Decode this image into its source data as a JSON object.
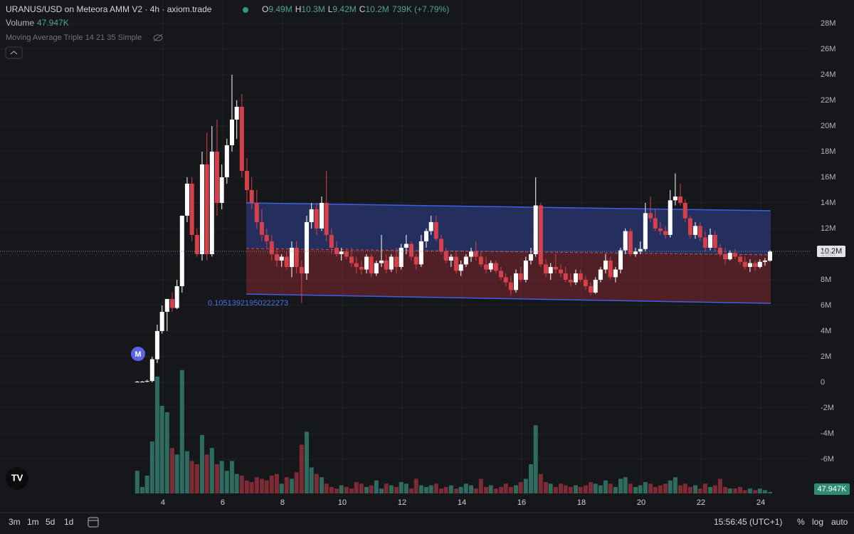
{
  "chart_data": {
    "type": "candlestick",
    "title": "URANUS/USD on Meteora AMM V2 · 4h · axiom.trade",
    "ohlc_legend": [
      {
        "label": "O",
        "value": "9.49M"
      },
      {
        "label": "H",
        "value": "10.3M"
      },
      {
        "label": "L",
        "value": "9.42M"
      },
      {
        "label": "C",
        "value": "10.2M"
      }
    ],
    "change": "739K (+7.79%)",
    "volume_label": "Volume",
    "volume_value": "47.947K",
    "indicator": "Moving Average Triple 14 21 35 Simple",
    "annotation": "0.10513921950222273",
    "badge": "M",
    "last_price_label": "10.2M",
    "last_volume_label": "47.947K",
    "timeframes": [
      "3m",
      "1m",
      "5d",
      "1d"
    ],
    "clock": "15:56:45 (UTC+1)",
    "buttons": [
      "%",
      "log",
      "auto"
    ],
    "log_scale": false,
    "up_color": "#ffffff",
    "down_color": "#d6404b",
    "volume_up_color": "#2f6b5f",
    "volume_down_color": "#7d2c35",
    "xlim": [
      -1.45,
      25.69
    ],
    "xticks": [
      4,
      6,
      8,
      10,
      12,
      14,
      16,
      18,
      20,
      22,
      24
    ],
    "ylim": [
      -8.67,
      29.83
    ],
    "yticks": [
      {
        "value": -6,
        "label": "-6M"
      },
      {
        "value": -4,
        "label": "-4M"
      },
      {
        "value": -2,
        "label": "-2M"
      },
      0,
      {
        "value": 2,
        "label": "2M"
      },
      {
        "value": 4,
        "label": "4M"
      },
      {
        "value": 6,
        "label": "6M"
      },
      {
        "value": 8,
        "label": "8M"
      },
      {
        "value": 10,
        "label": "10M"
      },
      {
        "value": 12,
        "label": "12M"
      },
      {
        "value": 14,
        "label": "14M"
      },
      {
        "value": 16,
        "label": "16M"
      },
      {
        "value": 18,
        "label": "18M"
      },
      {
        "value": 20,
        "label": "20M"
      },
      {
        "value": 22,
        "label": "22M"
      },
      {
        "value": 24,
        "label": "24M"
      },
      {
        "value": 26,
        "label": "26M"
      },
      {
        "value": 28,
        "label": "28M"
      }
    ],
    "volume_ylim": [
      0,
      15200
    ],
    "x": [
      3.14,
      3.31,
      3.47,
      3.64,
      3.81,
      3.97,
      4.14,
      4.31,
      4.47,
      4.64,
      4.81,
      4.97,
      5.14,
      5.31,
      5.47,
      5.64,
      5.81,
      5.97,
      6.14,
      6.31,
      6.47,
      6.64,
      6.81,
      6.97,
      7.14,
      7.31,
      7.47,
      7.64,
      7.81,
      7.97,
      8.14,
      8.31,
      8.47,
      8.64,
      8.81,
      8.97,
      9.14,
      9.31,
      9.47,
      9.64,
      9.81,
      9.97,
      10.14,
      10.31,
      10.47,
      10.64,
      10.81,
      10.97,
      11.14,
      11.31,
      11.47,
      11.64,
      11.81,
      11.97,
      12.14,
      12.31,
      12.47,
      12.64,
      12.81,
      12.97,
      13.14,
      13.31,
      13.47,
      13.64,
      13.81,
      13.97,
      14.14,
      14.31,
      14.47,
      14.64,
      14.81,
      14.97,
      15.14,
      15.31,
      15.47,
      15.64,
      15.81,
      15.97,
      16.14,
      16.31,
      16.47,
      16.64,
      16.81,
      16.97,
      17.14,
      17.31,
      17.47,
      17.64,
      17.81,
      17.97,
      18.14,
      18.31,
      18.47,
      18.64,
      18.81,
      18.97,
      19.14,
      19.31,
      19.47,
      19.64,
      19.81,
      19.97,
      20.14,
      20.31,
      20.47,
      20.64,
      20.81,
      20.97,
      21.14,
      21.31,
      21.47,
      21.64,
      21.81,
      21.97,
      22.14,
      22.31,
      22.47,
      22.64,
      22.81,
      22.97,
      23.14,
      23.31,
      23.47,
      23.64,
      23.81,
      23.97,
      24.14,
      24.31
    ],
    "candles": [
      [
        0,
        0.1,
        0,
        0.05
      ],
      [
        0.05,
        0.1,
        0,
        0.05
      ],
      [
        0.05,
        0.2,
        0,
        0.1
      ],
      [
        0.1,
        2,
        0,
        1.8
      ],
      [
        1.8,
        4.5,
        1.5,
        4
      ],
      [
        4,
        6,
        3.8,
        5.5
      ],
      [
        5.5,
        6.5,
        4,
        6.5
      ],
      [
        6.5,
        7,
        5.5,
        5.8
      ],
      [
        5.8,
        8,
        5.7,
        7.5
      ],
      [
        7.5,
        13,
        7,
        13
      ],
      [
        13,
        16,
        12.5,
        15.5
      ],
      [
        15.5,
        16,
        11,
        11.5
      ],
      [
        11.5,
        12,
        9.8,
        10
      ],
      [
        10,
        18,
        9.5,
        17
      ],
      [
        17,
        19.5,
        9.5,
        10
      ],
      [
        10,
        20,
        9.8,
        18
      ],
      [
        18,
        20.5,
        13,
        14
      ],
      [
        14,
        17,
        13.5,
        16
      ],
      [
        16,
        19,
        15.5,
        18.5
      ],
      [
        18.5,
        24,
        18,
        20.5
      ],
      [
        20.5,
        22,
        19,
        21.5
      ],
      [
        21.5,
        22.5,
        16,
        16.5
      ],
      [
        16.5,
        17.5,
        14,
        15
      ],
      [
        15,
        16,
        13.5,
        14
      ],
      [
        14,
        15,
        12,
        12.5
      ],
      [
        12.5,
        13.5,
        11,
        11.5
      ],
      [
        11.5,
        12,
        10.5,
        11
      ],
      [
        11,
        11.5,
        9.5,
        10
      ],
      [
        10,
        10.5,
        9,
        9.5
      ],
      [
        9.5,
        10,
        9,
        9.8
      ],
      [
        9.8,
        10.2,
        8.8,
        9
      ],
      [
        9,
        11,
        8.2,
        10.5
      ],
      [
        10.5,
        11,
        8.5,
        9
      ],
      [
        9,
        9.5,
        6.2,
        8.5
      ],
      [
        8.5,
        13,
        8,
        12.5
      ],
      [
        12.5,
        14,
        12,
        13.5
      ],
      [
        13.5,
        14,
        11.5,
        12
      ],
      [
        12,
        14.5,
        11.8,
        14
      ],
      [
        14,
        16.5,
        11,
        11.5
      ],
      [
        11.5,
        12,
        10,
        10.5
      ],
      [
        10.5,
        11,
        9.8,
        10
      ],
      [
        10,
        10.5,
        9.5,
        10.2
      ],
      [
        10.2,
        10.5,
        9.6,
        9.8
      ],
      [
        9.8,
        10.5,
        9,
        9.3
      ],
      [
        9.3,
        9.8,
        8.5,
        9
      ],
      [
        9,
        9.5,
        8.4,
        8.8
      ],
      [
        8.8,
        10,
        8.5,
        9.8
      ],
      [
        9.8,
        10,
        8.2,
        8.5
      ],
      [
        8.5,
        9.5,
        8.3,
        9.3
      ],
      [
        9.3,
        11.5,
        9,
        9.5
      ],
      [
        9.5,
        10,
        8.5,
        8.8
      ],
      [
        8.8,
        10,
        8.6,
        9.8
      ],
      [
        9.8,
        10.5,
        8.5,
        9
      ],
      [
        9,
        10.8,
        8.8,
        10.5
      ],
      [
        10.5,
        11.5,
        10,
        10.8
      ],
      [
        10.8,
        11,
        9.5,
        9.8
      ],
      [
        9.8,
        10,
        8.8,
        9.2
      ],
      [
        9.2,
        11.5,
        9,
        11
      ],
      [
        11,
        12,
        10.5,
        11.8
      ],
      [
        11.8,
        13,
        11.5,
        12.5
      ],
      [
        12.5,
        13,
        11,
        11.2
      ],
      [
        11.2,
        11.5,
        10,
        10.2
      ],
      [
        10.2,
        10.5,
        9.3,
        9.5
      ],
      [
        9.5,
        10,
        9,
        9.8
      ],
      [
        9.8,
        10.2,
        8.5,
        8.7
      ],
      [
        8.7,
        9.5,
        8.3,
        9.2
      ],
      [
        9.2,
        10,
        9,
        9.8
      ],
      [
        9.8,
        10.5,
        9.4,
        10.2
      ],
      [
        10.2,
        11,
        9.5,
        9.8
      ],
      [
        9.8,
        10.2,
        9,
        9.2
      ],
      [
        9.2,
        9.8,
        8.5,
        8.8
      ],
      [
        8.8,
        9.5,
        8.6,
        9.3
      ],
      [
        9.3,
        9.5,
        8.5,
        8.7
      ],
      [
        8.7,
        9,
        8,
        8.2
      ],
      [
        8.2,
        8.5,
        7.5,
        7.8
      ],
      [
        7.8,
        8.3,
        6.8,
        7.2
      ],
      [
        7.2,
        8.8,
        7,
        8.5
      ],
      [
        8.5,
        9,
        7.8,
        8
      ],
      [
        8,
        9.8,
        7.8,
        9.5
      ],
      [
        9.5,
        10.5,
        9.2,
        10
      ],
      [
        10,
        16,
        9.8,
        13.8
      ],
      [
        13.8,
        14,
        9,
        9.2
      ],
      [
        9.2,
        9.6,
        8.2,
        8.5
      ],
      [
        8.5,
        9.3,
        8,
        9
      ],
      [
        9,
        10,
        8.5,
        8.8
      ],
      [
        8.8,
        9.2,
        8.2,
        8.5
      ],
      [
        8.5,
        9,
        7.8,
        8
      ],
      [
        8,
        8.5,
        7.5,
        7.8
      ],
      [
        7.8,
        8.8,
        7.6,
        8.5
      ],
      [
        8.5,
        8.8,
        7.8,
        8
      ],
      [
        8,
        8.3,
        7.2,
        7.5
      ],
      [
        7.5,
        7.8,
        6.8,
        7
      ],
      [
        7,
        8.2,
        6.9,
        8
      ],
      [
        8,
        9,
        7.8,
        8.8
      ],
      [
        8.8,
        10,
        8.5,
        9.5
      ],
      [
        9.5,
        9.8,
        8,
        8.2
      ],
      [
        8.2,
        9,
        7.8,
        8.8
      ],
      [
        8.8,
        10.5,
        8.5,
        10.3
      ],
      [
        10.3,
        12,
        10,
        11.8
      ],
      [
        11.8,
        12,
        9.8,
        10
      ],
      [
        10,
        10.5,
        9.8,
        10.2
      ],
      [
        10.2,
        11,
        10,
        10.4
      ],
      [
        10.4,
        14,
        10.2,
        13.2
      ],
      [
        13.2,
        14.5,
        12.5,
        12.8
      ],
      [
        12.8,
        13.5,
        11.8,
        12
      ],
      [
        12,
        12.5,
        11.5,
        11.8
      ],
      [
        11.8,
        12.2,
        11.2,
        11.5
      ],
      [
        11.5,
        15,
        11.3,
        14.2
      ],
      [
        14.2,
        16.3,
        13.8,
        14.5
      ],
      [
        14.5,
        15.5,
        13.8,
        14
      ],
      [
        14,
        14.3,
        12.5,
        12.8
      ],
      [
        12.8,
        13,
        11.2,
        11.5
      ],
      [
        11.5,
        12.5,
        11.2,
        12.2
      ],
      [
        12.2,
        12.5,
        11,
        11.3
      ],
      [
        11.3,
        11.8,
        10.2,
        10.5
      ],
      [
        10.5,
        12,
        10.3,
        11.5
      ],
      [
        11.5,
        11.8,
        10.2,
        10.5
      ],
      [
        10.5,
        10.8,
        9.8,
        10
      ],
      [
        10,
        10.5,
        9.2,
        9.6
      ],
      [
        9.6,
        10.3,
        9.5,
        10.1
      ],
      [
        10.1,
        10.4,
        9.6,
        9.8
      ],
      [
        9.8,
        10,
        9.2,
        9.4
      ],
      [
        9.4,
        9.8,
        8.8,
        9
      ],
      [
        9,
        9.6,
        8.6,
        9.3
      ],
      [
        9.3,
        9.5,
        8.7,
        9
      ],
      [
        9,
        9.6,
        8.9,
        9.4
      ],
      [
        9.4,
        9.7,
        9.1,
        9.5
      ],
      [
        9.49,
        10.3,
        9.42,
        10.2
      ]
    ],
    "volume": [
      700,
      200,
      550,
      1600,
      3600,
      2700,
      2500,
      1400,
      1200,
      3800,
      1300,
      1000,
      900,
      1800,
      1200,
      1400,
      900,
      1000,
      700,
      1000,
      600,
      550,
      400,
      350,
      500,
      450,
      400,
      550,
      600,
      300,
      500,
      450,
      650,
      1500,
      1900,
      800,
      600,
      500,
      300,
      200,
      150,
      250,
      200,
      150,
      350,
      300,
      200,
      250,
      400,
      150,
      300,
      250,
      200,
      350,
      300,
      150,
      450,
      250,
      200,
      250,
      300,
      150,
      200,
      250,
      150,
      200,
      300,
      250,
      150,
      450,
      200,
      250,
      150,
      200,
      300,
      200,
      250,
      350,
      450,
      900,
      2100,
      600,
      350,
      300,
      200,
      300,
      250,
      200,
      250,
      200,
      250,
      350,
      300,
      250,
      400,
      300,
      200,
      450,
      500,
      300,
      200,
      250,
      350,
      300,
      200,
      250,
      300,
      400,
      500,
      250,
      300,
      200,
      250,
      150,
      300,
      200,
      250,
      450,
      200,
      150,
      150,
      200,
      100,
      150,
      100,
      150,
      100,
      47.947
    ]
  }
}
